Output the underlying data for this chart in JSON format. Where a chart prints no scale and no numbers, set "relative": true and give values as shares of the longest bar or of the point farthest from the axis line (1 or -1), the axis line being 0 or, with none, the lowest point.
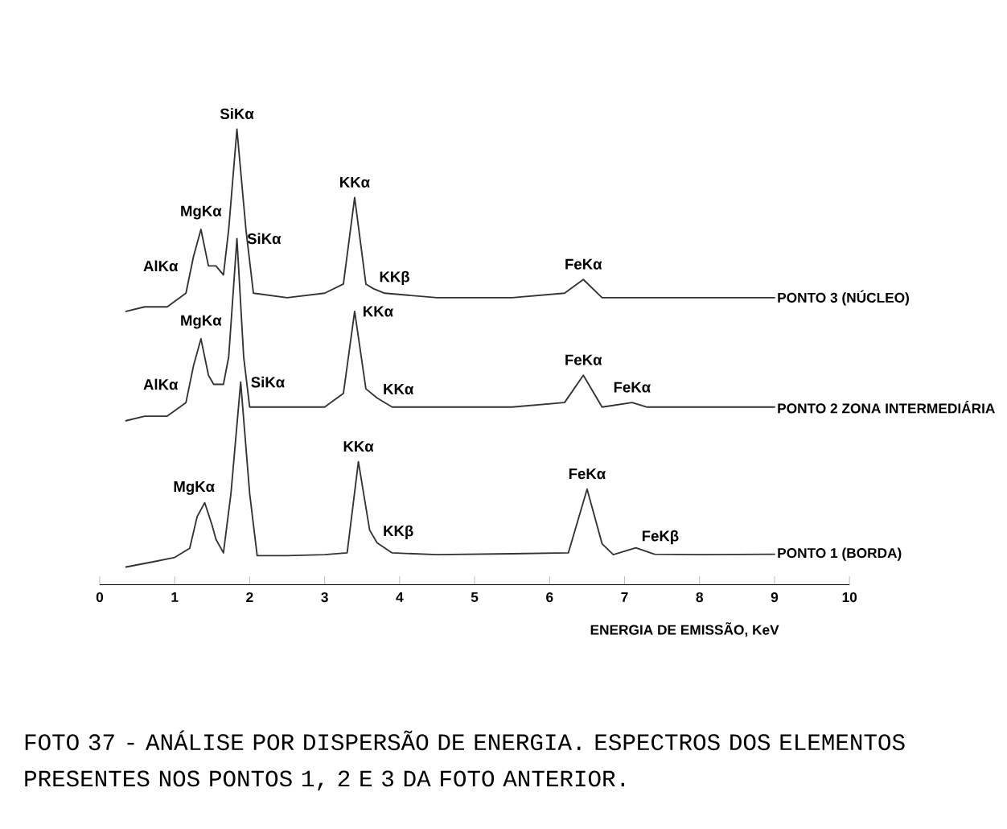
{
  "chart_data": {
    "type": "line",
    "relative": true,
    "xlabel": "ENERGIA DE EMISSÃO, KeV",
    "xlim": [
      0,
      10
    ],
    "xticks": [
      0,
      1,
      2,
      3,
      4,
      5,
      6,
      7,
      8,
      9,
      10
    ],
    "legend": false,
    "series": [
      {
        "name": "PONTO 3 (NÚCLEO)",
        "color": "#333333",
        "x": [
          0.35,
          0.6,
          0.9,
          1.15,
          1.25,
          1.35,
          1.45,
          1.55,
          1.65,
          1.72,
          1.83,
          1.95,
          2.05,
          2.5,
          3.0,
          3.25,
          3.4,
          3.55,
          3.65,
          3.8,
          4.5,
          5.5,
          6.2,
          6.45,
          6.7,
          7.5,
          8.5,
          9.0
        ],
        "values": [
          0.6,
          0.61,
          0.61,
          0.64,
          0.72,
          0.78,
          0.7,
          0.7,
          0.68,
          0.78,
          1.0,
          0.78,
          0.64,
          0.63,
          0.64,
          0.66,
          0.85,
          0.66,
          0.65,
          0.64,
          0.63,
          0.63,
          0.64,
          0.67,
          0.63,
          0.63,
          0.63,
          0.63
        ]
      },
      {
        "name": "PONTO 2 ZONA INTERMEDIÁRIA",
        "color": "#333333",
        "x": [
          0.35,
          0.6,
          0.9,
          1.15,
          1.25,
          1.35,
          1.45,
          1.52,
          1.65,
          1.72,
          1.83,
          1.92,
          2.0,
          2.5,
          3.0,
          3.25,
          3.4,
          3.55,
          3.7,
          3.9,
          4.5,
          5.5,
          6.2,
          6.45,
          6.7,
          7.1,
          7.3,
          8.5,
          9.0
        ],
        "values": [
          0.36,
          0.37,
          0.37,
          0.4,
          0.48,
          0.54,
          0.46,
          0.44,
          0.44,
          0.5,
          0.76,
          0.5,
          0.39,
          0.39,
          0.39,
          0.42,
          0.6,
          0.43,
          0.41,
          0.39,
          0.39,
          0.39,
          0.4,
          0.46,
          0.39,
          0.4,
          0.39,
          0.39,
          0.39
        ]
      },
      {
        "name": "PONTO 1 (BORDA)",
        "color": "#333333",
        "x": [
          0.35,
          0.7,
          1.0,
          1.2,
          1.3,
          1.4,
          1.5,
          1.55,
          1.65,
          1.75,
          1.88,
          2.0,
          2.1,
          2.5,
          3.0,
          3.3,
          3.45,
          3.6,
          3.7,
          3.9,
          4.5,
          5.5,
          6.25,
          6.5,
          6.7,
          6.85,
          7.15,
          7.4,
          8.0,
          9.0
        ],
        "values": [
          0.039,
          0.05,
          0.06,
          0.08,
          0.15,
          0.18,
          0.13,
          0.1,
          0.07,
          0.2,
          0.445,
          0.2,
          0.064,
          0.064,
          0.066,
          0.07,
          0.27,
          0.12,
          0.092,
          0.07,
          0.066,
          0.068,
          0.07,
          0.21,
          0.09,
          0.066,
          0.081,
          0.067,
          0.066,
          0.067
        ]
      }
    ],
    "annotations": [
      {
        "text": "SiKα",
        "x": 1.83,
        "y": 1.0
      },
      {
        "text": "MgKα",
        "x": 1.35,
        "y": 0.78
      },
      {
        "text": "AlKα",
        "x": 1.55,
        "y": 0.7
      },
      {
        "text": "KKα",
        "x": 3.4,
        "y": 0.85
      },
      {
        "text": "KKβ",
        "x": 3.65,
        "y": 0.65
      },
      {
        "text": "FeKα",
        "x": 6.45,
        "y": 0.67
      },
      {
        "text": "MgKα",
        "x": 1.35,
        "y": 0.54
      },
      {
        "text": "AlKα",
        "x": 1.55,
        "y": 0.44
      },
      {
        "text": "SiKα",
        "x": 1.83,
        "y": 0.76
      },
      {
        "text": "KKα",
        "x": 3.4,
        "y": 0.6
      },
      {
        "text": "KKα",
        "x": 3.7,
        "y": 0.41
      },
      {
        "text": "FeKα",
        "x": 6.45,
        "y": 0.46
      },
      {
        "text": "FeKα",
        "x": 7.1,
        "y": 0.4
      },
      {
        "text": "MgKα",
        "x": 1.4,
        "y": 0.18
      },
      {
        "text": "SiKα",
        "x": 1.88,
        "y": 0.445
      },
      {
        "text": "KKα",
        "x": 3.45,
        "y": 0.27
      },
      {
        "text": "KKβ",
        "x": 3.7,
        "y": 0.092
      },
      {
        "text": "FeKα",
        "x": 6.5,
        "y": 0.21
      },
      {
        "text": "FeKβ",
        "x": 7.15,
        "y": 0.081
      },
      "FOTO 37 - ANÁLISE POR DISPERSÃO DE ENERGIA. ESPECTROS DOS ELEMENTOS PRESENTES NOS PONTOS 1, 2 E 3 DA FOTO ANTERIOR."
    ]
  }
}
